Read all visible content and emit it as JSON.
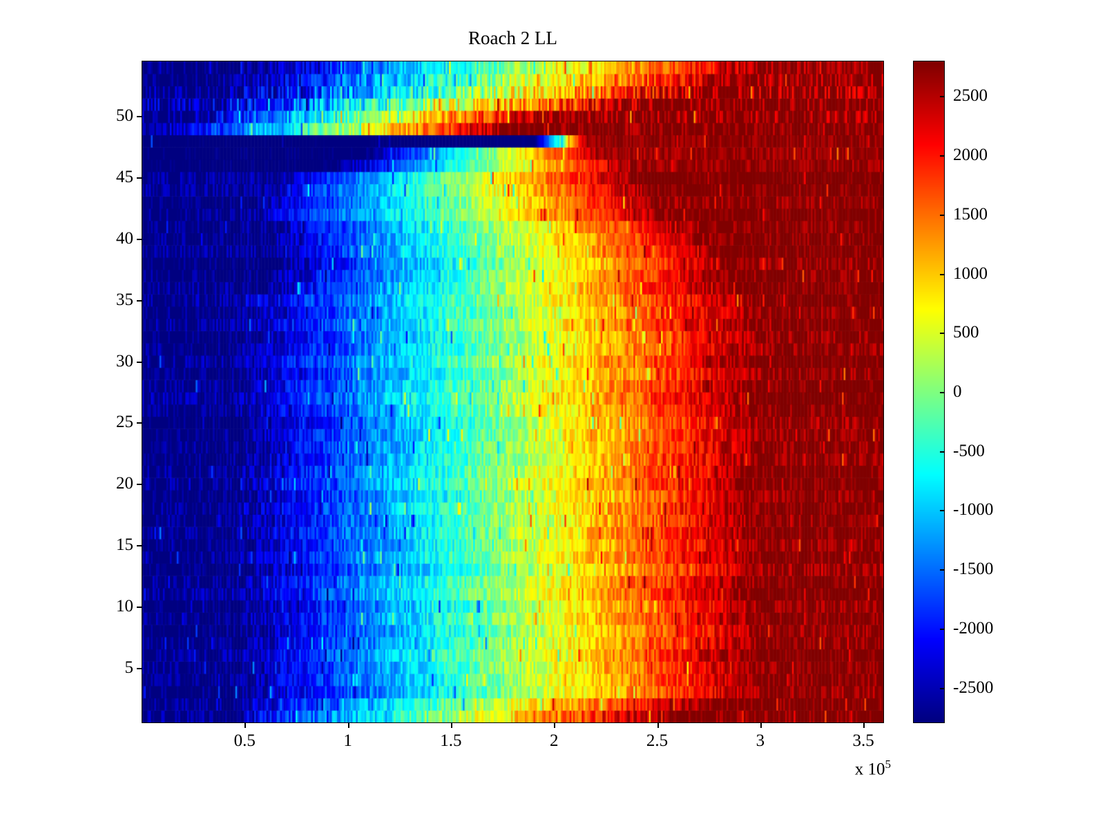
{
  "chart_data": {
    "type": "heatmap",
    "title": "Roach 2 LL",
    "x_axis": {
      "min": 0,
      "max": 360000,
      "tick_values": [
        50000,
        100000,
        150000,
        200000,
        250000,
        300000,
        350000
      ],
      "tick_labels": [
        "0.5",
        "1",
        "1.5",
        "2",
        "2.5",
        "3",
        "3.5"
      ],
      "multiplier_base": "x 10",
      "multiplier_exponent": "5"
    },
    "y_axis": {
      "min": 0.5,
      "max": 54.5,
      "rows": 54,
      "tick_values": [
        5,
        10,
        15,
        20,
        25,
        30,
        35,
        40,
        45,
        50
      ],
      "tick_labels": [
        "5",
        "10",
        "15",
        "20",
        "25",
        "30",
        "35",
        "40",
        "45",
        "50"
      ]
    },
    "colorbar": {
      "min": -2800,
      "max": 2800,
      "tick_values": [
        2500,
        2000,
        1500,
        1000,
        500,
        0,
        -500,
        -1000,
        -1500,
        -2000,
        -2500
      ],
      "tick_labels": [
        "2500",
        "2000",
        "1500",
        "1000",
        "500",
        "0",
        "-500",
        "-1000",
        "-1500",
        "-2000",
        "-2500"
      ],
      "colormap": "jet",
      "colormap_anchors": [
        "#00008F",
        "#0000FF",
        "#00FFFF",
        "#80FF80",
        "#FFFF00",
        "#FF0000",
        "#800000"
      ]
    },
    "surface": {
      "description": "Noisy horizontal gradient from about -2800 (dark blue) at the left edge to about +2800 (dark red) at the right edge; zero crossing (green/yellow) near x = 1.75e5; anomalous bright noisy bands near rows 49-53, a sharp dark-blue/dark-red split row near row 48, and extended saturated dark red on the right for rows 42-48.",
      "columns": 430,
      "value_min": -2800,
      "value_max": 2800,
      "noise_seed": 20,
      "row_offset_amp": 150,
      "spike_chance": 0.06,
      "spike_amp": 1100,
      "default_row": {
        "start": 0.12,
        "end": 0.84,
        "noise": 420
      },
      "special_rows": {
        "1": {
          "start": 0.1,
          "end": 0.72,
          "noise": 480
        },
        "2": {
          "start": 0.11,
          "end": 0.78,
          "noise": 430
        },
        "36": {
          "start": 0.16,
          "end": 0.8,
          "noise": 400
        },
        "37": {
          "start": 0.16,
          "end": 0.8,
          "noise": 400
        },
        "38": {
          "start": 0.17,
          "end": 0.8,
          "noise": 400
        },
        "39": {
          "start": 0.17,
          "end": 0.79,
          "noise": 400
        },
        "40": {
          "start": 0.16,
          "end": 0.78,
          "noise": 400
        },
        "41": {
          "start": 0.16,
          "end": 0.76,
          "noise": 400
        },
        "42": {
          "start": 0.14,
          "end": 0.72,
          "noise": 380
        },
        "43": {
          "start": 0.14,
          "end": 0.7,
          "noise": 380
        },
        "44": {
          "start": 0.15,
          "end": 0.7,
          "noise": 380
        },
        "45": {
          "start": 0.18,
          "end": 0.68,
          "noise": 350
        },
        "46": {
          "start": 0.25,
          "end": 0.66,
          "noise": 300
        },
        "47": {
          "start": 0.3,
          "end": 0.62,
          "noise": 300
        },
        "48": {
          "start": 0.53,
          "end": 0.6,
          "noise": 200
        },
        "49": {
          "start": 0.02,
          "end": 0.5,
          "noise": 500
        },
        "50": {
          "start": 0.05,
          "end": 0.55,
          "noise": 620
        },
        "51": {
          "start": 0.08,
          "end": 0.7,
          "noise": 720
        },
        "52": {
          "start": 0.1,
          "end": 0.75,
          "noise": 720
        },
        "53": {
          "start": 0.1,
          "end": 0.8,
          "noise": 560
        },
        "54": {
          "start": 0.12,
          "end": 0.84,
          "noise": 460
        }
      }
    }
  }
}
